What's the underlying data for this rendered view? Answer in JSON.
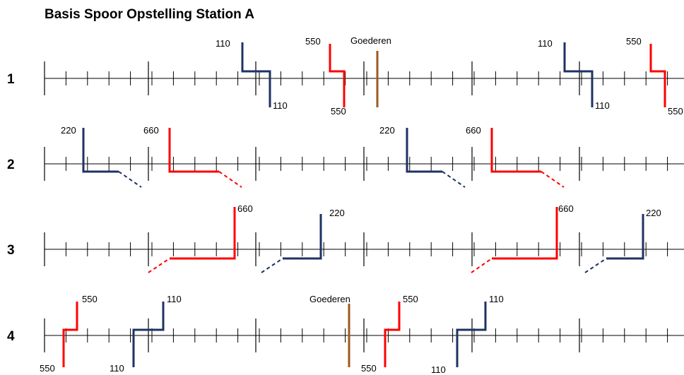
{
  "title": "Basis Spoor  Opstelling Station A",
  "colors": {
    "track": "#000000",
    "service_110_220": "#1f3264",
    "service_550_660": "#ff0000",
    "goods": "#9c5a1c"
  },
  "rows": [
    {
      "label": "1",
      "trains": [
        {
          "type": "110",
          "color": "service_110_220",
          "labels": [
            "110",
            "110"
          ]
        },
        {
          "type": "550",
          "color": "service_550_660",
          "labels": [
            "550",
            "550"
          ]
        },
        {
          "type": "goods",
          "color": "goods",
          "labels": [
            "Goederen"
          ]
        },
        {
          "type": "110",
          "color": "service_110_220",
          "labels": [
            "110",
            "110"
          ]
        },
        {
          "type": "550",
          "color": "service_550_660",
          "labels": [
            "550",
            "550"
          ]
        }
      ]
    },
    {
      "label": "2",
      "trains": [
        {
          "type": "220",
          "color": "service_110_220",
          "labels": [
            "220"
          ]
        },
        {
          "type": "660",
          "color": "service_550_660",
          "labels": [
            "660"
          ]
        },
        {
          "type": "220",
          "color": "service_110_220",
          "labels": [
            "220"
          ]
        },
        {
          "type": "660",
          "color": "service_550_660",
          "labels": [
            "660"
          ]
        }
      ]
    },
    {
      "label": "3",
      "trains": [
        {
          "type": "660",
          "color": "service_550_660",
          "labels": [
            "660"
          ]
        },
        {
          "type": "220",
          "color": "service_110_220",
          "labels": [
            "220"
          ]
        },
        {
          "type": "660",
          "color": "service_550_660",
          "labels": [
            "660"
          ]
        },
        {
          "type": "220",
          "color": "service_110_220",
          "labels": [
            "220"
          ]
        }
      ]
    },
    {
      "label": "4",
      "trains": [
        {
          "type": "550",
          "color": "service_550_660",
          "labels": [
            "550",
            "550"
          ]
        },
        {
          "type": "110",
          "color": "service_110_220",
          "labels": [
            "110",
            "110"
          ]
        },
        {
          "type": "goods",
          "color": "goods",
          "labels": [
            "Goederen"
          ]
        },
        {
          "type": "550",
          "color": "service_550_660",
          "labels": [
            "550",
            "550"
          ]
        },
        {
          "type": "110",
          "color": "service_110_220",
          "labels": [
            "110",
            "110"
          ]
        }
      ]
    }
  ]
}
